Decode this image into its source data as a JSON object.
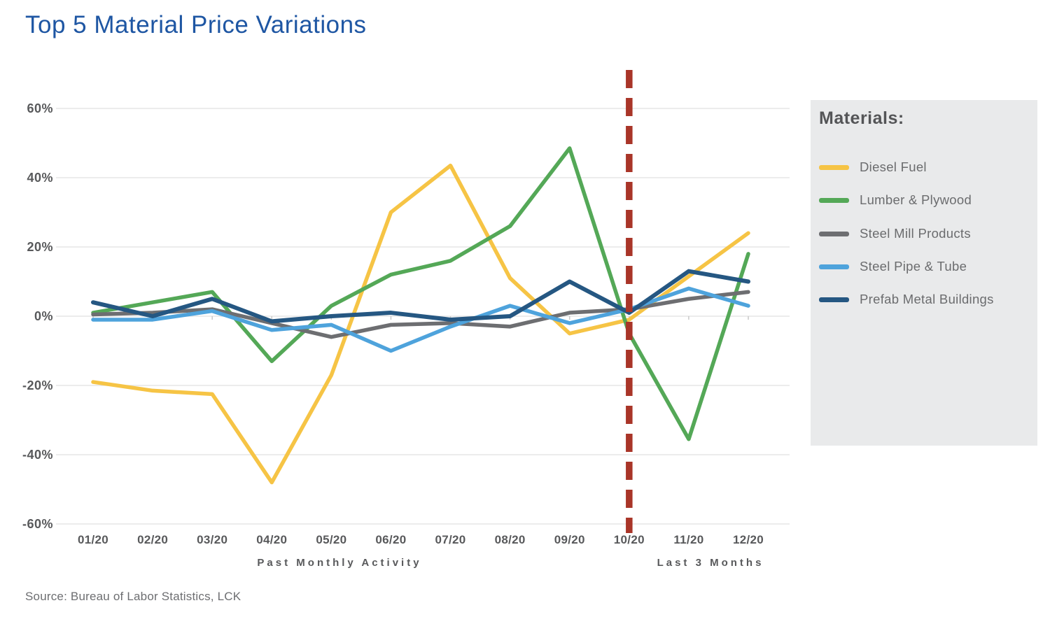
{
  "page": {
    "title": "Top 5 Material Price Variations",
    "source": "Source: Bureau of Labor Statistics, LCK"
  },
  "legend": {
    "title": "Materials:",
    "items": [
      {
        "label": "Diesel Fuel",
        "color": "#f6c445"
      },
      {
        "label": "Lumber & Plywood",
        "color": "#54a857"
      },
      {
        "label": "Steel Mill Products",
        "color": "#6d6e71"
      },
      {
        "label": "Steel Pipe & Tube",
        "color": "#4ea3dc"
      },
      {
        "label": "Prefab Metal Buildings",
        "color": "#255782"
      }
    ]
  },
  "chart_data": {
    "type": "line",
    "title": "Top 5 Material Price Variations",
    "categories": [
      "01/20",
      "02/20",
      "03/20",
      "04/20",
      "05/20",
      "06/20",
      "07/20",
      "08/20",
      "09/20",
      "10/20",
      "11/20",
      "12/20"
    ],
    "series": [
      {
        "name": "Diesel Fuel",
        "color": "#f6c445",
        "width": 5.5,
        "values": [
          -19,
          -21.5,
          -22.5,
          -48,
          -17,
          30,
          43.5,
          11,
          -5,
          -1,
          11.5,
          24
        ]
      },
      {
        "name": "Lumber & Plywood",
        "color": "#54a857",
        "width": 5.5,
        "values": [
          1,
          4,
          7,
          -13,
          3,
          12,
          16,
          26,
          48.5,
          -5,
          -35.5,
          18
        ]
      },
      {
        "name": "Steel Mill Products",
        "color": "#6d6e71",
        "width": 5.5,
        "values": [
          0.5,
          1,
          2,
          -2,
          -6,
          -2.5,
          -2,
          -3,
          1,
          2,
          5,
          7
        ]
      },
      {
        "name": "Steel Pipe & Tube",
        "color": "#4ea3dc",
        "width": 5.5,
        "values": [
          -1,
          -1,
          1.5,
          -4,
          -2.5,
          -10,
          -3,
          3,
          -2,
          2,
          8,
          3
        ]
      },
      {
        "name": "Prefab Metal Buildings",
        "color": "#255782",
        "width": 6,
        "values": [
          4,
          0,
          5,
          -1.5,
          0,
          1,
          -1,
          0,
          10,
          1,
          13,
          10
        ]
      }
    ],
    "ylim": [
      -60,
      60
    ],
    "ytick_step": 20,
    "ytick_labels": [
      "60%",
      "40%",
      "20%",
      "0%",
      "-20%",
      "-40%",
      "-60%"
    ],
    "grid": "horizontal",
    "legend_position": "right",
    "xlabel_left": "Past Monthly Activity",
    "xlabel_right": "Last 3 Months",
    "divider": {
      "at_category": "10/20",
      "color": "#a93528",
      "style": "vertical-dashed"
    }
  }
}
